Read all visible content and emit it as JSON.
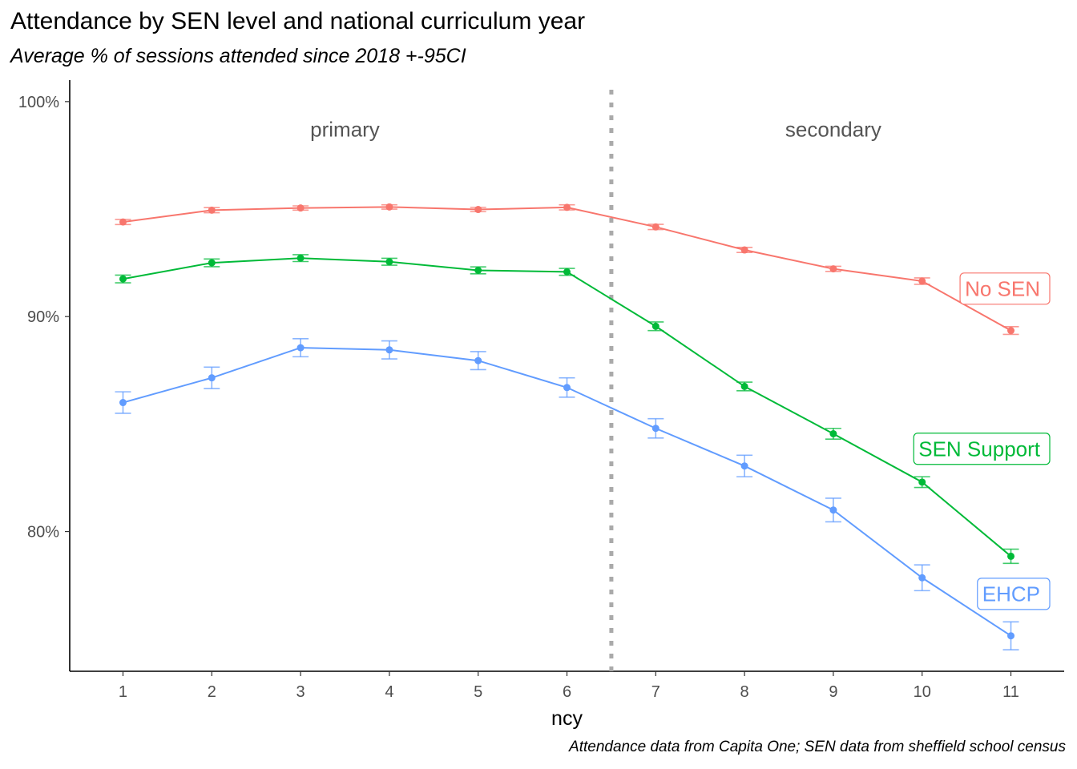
{
  "title": "Attendance by SEN level and national curriculum year",
  "subtitle": "Average % of sessions attended since 2018 +-95CI",
  "caption": "Attendance data from Capita One; SEN data from sheffield school census",
  "chart_data": {
    "type": "line",
    "xlabel": "ncy",
    "ylabel": "",
    "x": [
      1,
      2,
      3,
      4,
      5,
      6,
      7,
      8,
      9,
      10,
      11
    ],
    "x_tick_labels": [
      "1",
      "2",
      "3",
      "4",
      "5",
      "6",
      "7",
      "8",
      "9",
      "10",
      "11"
    ],
    "ylim": [
      73.5,
      101.0
    ],
    "y_ticks": [
      80,
      90,
      100
    ],
    "y_tick_labels": [
      "80%",
      "90%",
      "100%"
    ],
    "grid": false,
    "divider": {
      "x": 6.5,
      "style": "dotted",
      "color": "#aaaaaa"
    },
    "annotations": [
      {
        "text": "primary",
        "x": 3.5,
        "y": 98.7
      },
      {
        "text": "secondary",
        "x": 9.0,
        "y": 98.7
      }
    ],
    "series": [
      {
        "name": "No SEN",
        "color": "#F8766D",
        "values": [
          94.4,
          94.95,
          95.05,
          95.1,
          94.98,
          95.08,
          94.17,
          93.1,
          92.22,
          91.65,
          89.35
        ],
        "ci": [
          0.12,
          0.12,
          0.1,
          0.1,
          0.1,
          0.12,
          0.12,
          0.12,
          0.12,
          0.15,
          0.18
        ],
        "label_y": 91.3
      },
      {
        "name": "SEN Support",
        "color": "#00BA38",
        "values": [
          91.75,
          92.5,
          92.72,
          92.55,
          92.15,
          92.08,
          89.55,
          86.75,
          84.55,
          82.3,
          78.85
        ],
        "ci": [
          0.18,
          0.18,
          0.16,
          0.16,
          0.16,
          0.16,
          0.2,
          0.2,
          0.25,
          0.25,
          0.33
        ],
        "label_y": 83.85
      },
      {
        "name": "EHCP",
        "color": "#619CFF",
        "values": [
          86.0,
          87.15,
          88.55,
          88.45,
          87.95,
          86.7,
          84.8,
          83.05,
          81.0,
          77.85,
          75.15
        ],
        "ci": [
          0.5,
          0.5,
          0.42,
          0.42,
          0.42,
          0.45,
          0.45,
          0.5,
          0.55,
          0.6,
          0.65
        ],
        "label_y": 77.1
      }
    ]
  }
}
